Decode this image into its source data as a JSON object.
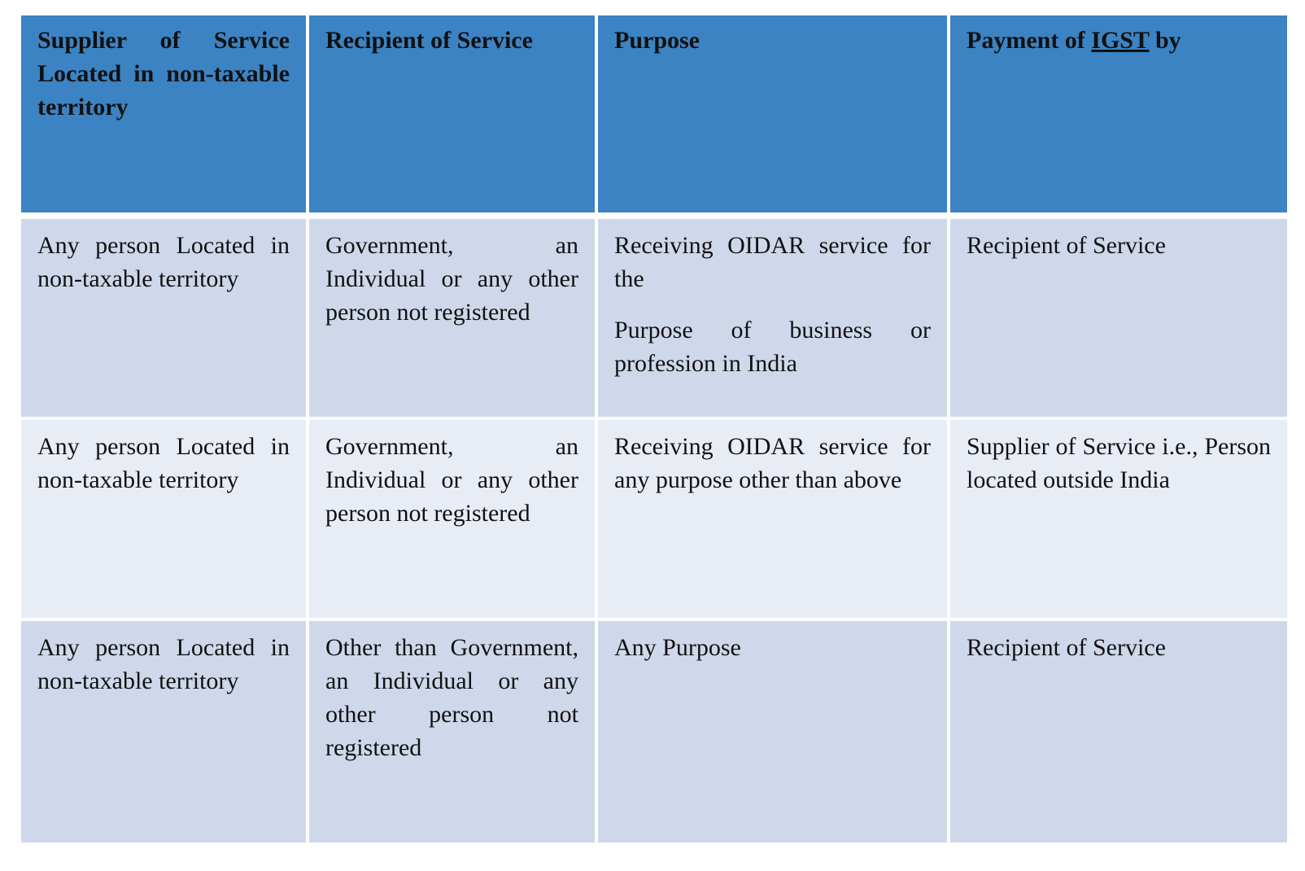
{
  "table": {
    "headers": {
      "supplier": "Supplier of Service Located in non-taxable territory",
      "recipient": "Recipient of Service",
      "purpose": "Purpose",
      "payment_prefix": "Payment of ",
      "payment_link": "IGST",
      "payment_suffix": " by"
    },
    "rows": [
      {
        "supplier": "Any person Located in non-taxable territory",
        "recipient": "Government, an Individual or any other person not registered",
        "purpose_1": "Receiving OIDAR service for the",
        "purpose_2": "Purpose of business or profession in India",
        "payment": "Recipient of Service"
      },
      {
        "supplier": "Any person Located in non-taxable territory",
        "recipient": "Government, an Individual or any other person not registered",
        "purpose_1": "Receiving OIDAR service for any purpose other than above",
        "payment": "Supplier of Service i.e., Person located outside India"
      },
      {
        "supplier": "Any person Located in non-taxable territory",
        "recipient": "Other than Government, an Individual or any other person not registered",
        "purpose_1": "Any Purpose",
        "payment": "Recipient of Service"
      }
    ]
  }
}
